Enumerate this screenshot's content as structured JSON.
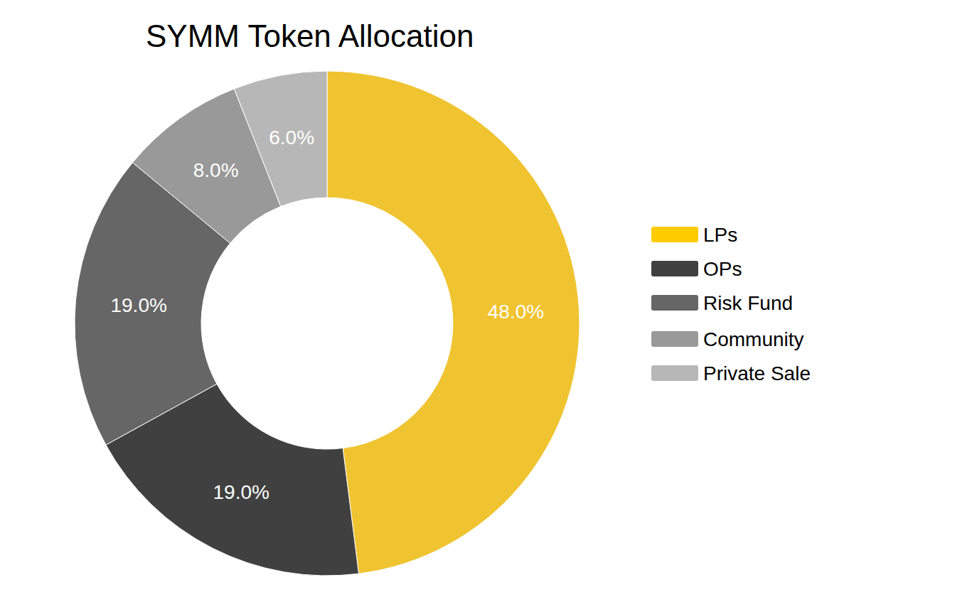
{
  "chart_data": {
    "type": "pie",
    "title": "SYMM Token Allocation",
    "categories": [
      "LPs",
      "OPs",
      "Risk Fund",
      "Community",
      "Private Sale"
    ],
    "values": [
      48,
      19,
      19,
      8,
      6
    ],
    "value_labels": [
      "48.0%",
      "19.0%",
      "19.0%",
      "8.0%",
      "6.0%"
    ],
    "colors": [
      "#f0c330",
      "#404040",
      "#666666",
      "#999999",
      "#b7b7b7"
    ],
    "data_labels": true,
    "legend": "right"
  }
}
